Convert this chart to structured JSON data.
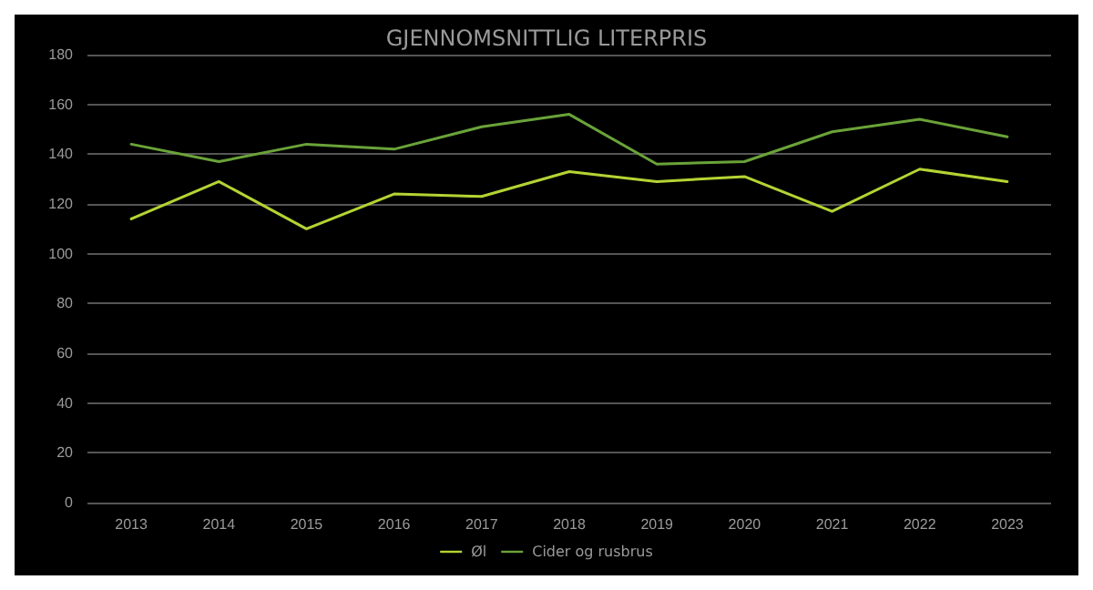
{
  "chart_data": {
    "type": "line",
    "title": "GJENNOMSNITTLIG LITERPRIS",
    "categories": [
      "2013",
      "2014",
      "2015",
      "2016",
      "2017",
      "2018",
      "2019",
      "2020",
      "2021",
      "2022",
      "2023"
    ],
    "series": [
      {
        "name": "Øl",
        "color": "#b4d433",
        "values": [
          114,
          129,
          110,
          124,
          123,
          133,
          129,
          131,
          117,
          134,
          129
        ]
      },
      {
        "name": "Cider og rusbrus",
        "color": "#6aa339",
        "values": [
          144,
          137,
          144,
          142,
          151,
          156,
          136,
          137,
          149,
          154,
          147
        ]
      }
    ],
    "ylim": [
      0,
      180
    ],
    "yticks": [
      0,
      20,
      40,
      60,
      80,
      100,
      120,
      140,
      160,
      180
    ],
    "grid": "y",
    "legend": "bottom",
    "marker": "none",
    "line_style": "solid"
  }
}
